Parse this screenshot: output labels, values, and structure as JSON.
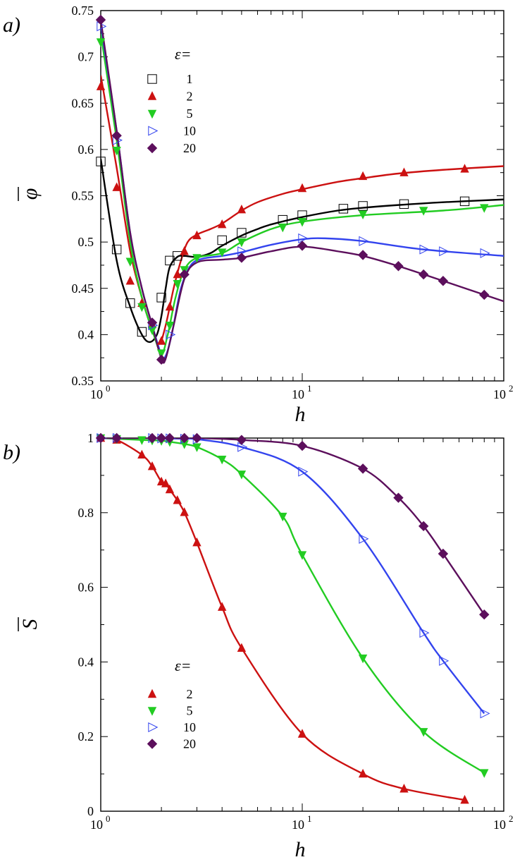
{
  "chart_data": [
    {
      "type": "line",
      "panel_label": "a)",
      "xlabel": "h",
      "ylabel": "φ",
      "x_scale": "log",
      "xlim": [
        1,
        100
      ],
      "ylim": [
        0.35,
        0.75
      ],
      "x_ticks": [
        {
          "value": 1,
          "base": "10",
          "exp": "0"
        },
        {
          "value": 10,
          "base": "10",
          "exp": "1"
        },
        {
          "value": 100,
          "base": "10",
          "exp": "2"
        }
      ],
      "y_ticks": [
        "0.35",
        "0.4",
        "0.45",
        "0.5",
        "0.55",
        "0.6",
        "0.65",
        "0.7",
        "0.75"
      ],
      "legend": {
        "title": "ε=",
        "position": "top-center"
      },
      "series": [
        {
          "name": "1",
          "color": "#000000",
          "marker": "square",
          "curve": [
            [
              1,
              0.59
            ],
            [
              1.2,
              0.48
            ],
            [
              1.4,
              0.43
            ],
            [
              1.6,
              0.4
            ],
            [
              1.75,
              0.392
            ],
            [
              1.9,
              0.4
            ],
            [
              2,
              0.42
            ],
            [
              2.1,
              0.45
            ],
            [
              2.2,
              0.473
            ],
            [
              2.4,
              0.484
            ],
            [
              2.6,
              0.485
            ],
            [
              3,
              0.484
            ],
            [
              3.5,
              0.488
            ],
            [
              4,
              0.496
            ],
            [
              5,
              0.507
            ],
            [
              6,
              0.514
            ],
            [
              7,
              0.519
            ],
            [
              10,
              0.527
            ],
            [
              15,
              0.534
            ],
            [
              20,
              0.537
            ],
            [
              30,
              0.54
            ],
            [
              50,
              0.543
            ],
            [
              100,
              0.546
            ]
          ],
          "points": [
            [
              1,
              0.587
            ],
            [
              1.2,
              0.492
            ],
            [
              1.4,
              0.434
            ],
            [
              1.6,
              0.403
            ],
            [
              2,
              0.44
            ],
            [
              2.2,
              0.48
            ],
            [
              2.4,
              0.485
            ],
            [
              4,
              0.502
            ],
            [
              5,
              0.51
            ],
            [
              8,
              0.524
            ],
            [
              10,
              0.529
            ],
            [
              16,
              0.536
            ],
            [
              20,
              0.539
            ],
            [
              32,
              0.541
            ],
            [
              64,
              0.544
            ]
          ]
        },
        {
          "name": "2",
          "color": "#cc1111",
          "marker": "triangle-up",
          "curve": [
            [
              1,
              0.68
            ],
            [
              1.2,
              0.58
            ],
            [
              1.4,
              0.49
            ],
            [
              1.6,
              0.44
            ],
            [
              1.8,
              0.405
            ],
            [
              1.95,
              0.39
            ],
            [
              2.1,
              0.41
            ],
            [
              2.3,
              0.45
            ],
            [
              2.5,
              0.48
            ],
            [
              2.7,
              0.5
            ],
            [
              3,
              0.508
            ],
            [
              3.5,
              0.514
            ],
            [
              4,
              0.52
            ],
            [
              5,
              0.534
            ],
            [
              6,
              0.543
            ],
            [
              8,
              0.552
            ],
            [
              10,
              0.557
            ],
            [
              15,
              0.565
            ],
            [
              20,
              0.569
            ],
            [
              30,
              0.574
            ],
            [
              50,
              0.578
            ],
            [
              100,
              0.582
            ]
          ],
          "points": [
            [
              1,
              0.668
            ],
            [
              1.2,
              0.559
            ],
            [
              1.4,
              0.458
            ],
            [
              1.6,
              0.434
            ],
            [
              1.8,
              0.411
            ],
            [
              2,
              0.393
            ],
            [
              2.2,
              0.43
            ],
            [
              2.4,
              0.465
            ],
            [
              2.6,
              0.49
            ],
            [
              3,
              0.507
            ],
            [
              4,
              0.519
            ],
            [
              5,
              0.535
            ],
            [
              10,
              0.558
            ],
            [
              20,
              0.571
            ],
            [
              32,
              0.575
            ],
            [
              64,
              0.579
            ]
          ]
        },
        {
          "name": "5",
          "color": "#22cc22",
          "marker": "triangle-down",
          "curve": [
            [
              1,
              0.725
            ],
            [
              1.2,
              0.61
            ],
            [
              1.4,
              0.5
            ],
            [
              1.6,
              0.44
            ],
            [
              1.8,
              0.405
            ],
            [
              2,
              0.38
            ],
            [
              2.15,
              0.4
            ],
            [
              2.35,
              0.44
            ],
            [
              2.6,
              0.47
            ],
            [
              3,
              0.483
            ],
            [
              4,
              0.488
            ],
            [
              5,
              0.5
            ],
            [
              7,
              0.514
            ],
            [
              10,
              0.522
            ],
            [
              20,
              0.529
            ],
            [
              50,
              0.534
            ],
            [
              100,
              0.54
            ]
          ],
          "points": [
            [
              1,
              0.716
            ],
            [
              1.2,
              0.599
            ],
            [
              1.4,
              0.479
            ],
            [
              1.6,
              0.43
            ],
            [
              1.8,
              0.405
            ],
            [
              2,
              0.38
            ],
            [
              2.2,
              0.41
            ],
            [
              2.4,
              0.455
            ],
            [
              2.6,
              0.47
            ],
            [
              3,
              0.483
            ],
            [
              4,
              0.489
            ],
            [
              5,
              0.5
            ],
            [
              8,
              0.516
            ],
            [
              10,
              0.522
            ],
            [
              20,
              0.53
            ],
            [
              40,
              0.534
            ],
            [
              80,
              0.537
            ]
          ]
        },
        {
          "name": "10",
          "color": "#3344ee",
          "marker": "triangle-right",
          "curve": [
            [
              1,
              0.735
            ],
            [
              1.2,
              0.62
            ],
            [
              1.4,
              0.51
            ],
            [
              1.6,
              0.45
            ],
            [
              1.8,
              0.41
            ],
            [
              2,
              0.378
            ],
            [
              2.1,
              0.377
            ],
            [
              2.25,
              0.4
            ],
            [
              2.5,
              0.45
            ],
            [
              2.8,
              0.475
            ],
            [
              3.2,
              0.482
            ],
            [
              4,
              0.485
            ],
            [
              5,
              0.489
            ],
            [
              7,
              0.497
            ],
            [
              10,
              0.503
            ],
            [
              13,
              0.504
            ],
            [
              20,
              0.501
            ],
            [
              40,
              0.492
            ],
            [
              100,
              0.485
            ]
          ],
          "points": [
            [
              1,
              0.733
            ],
            [
              1.2,
              0.61
            ],
            [
              1.8,
              0.41
            ],
            [
              2.2,
              0.4
            ],
            [
              5,
              0.49
            ],
            [
              10,
              0.504
            ],
            [
              20,
              0.501
            ],
            [
              40,
              0.492
            ],
            [
              50,
              0.49
            ],
            [
              80,
              0.488
            ]
          ]
        },
        {
          "name": "20",
          "color": "#5c0f5c",
          "marker": "diamond",
          "curve": [
            [
              1,
              0.74
            ],
            [
              1.2,
              0.62
            ],
            [
              1.4,
              0.51
            ],
            [
              1.6,
              0.45
            ],
            [
              1.8,
              0.41
            ],
            [
              2,
              0.374
            ],
            [
              2.1,
              0.374
            ],
            [
              2.3,
              0.41
            ],
            [
              2.6,
              0.46
            ],
            [
              3,
              0.478
            ],
            [
              4,
              0.481
            ],
            [
              5,
              0.483
            ],
            [
              7,
              0.49
            ],
            [
              10,
              0.495
            ],
            [
              15,
              0.49
            ],
            [
              20,
              0.485
            ],
            [
              30,
              0.474
            ],
            [
              50,
              0.458
            ],
            [
              100,
              0.436
            ]
          ],
          "points": [
            [
              1,
              0.74
            ],
            [
              1.2,
              0.615
            ],
            [
              1.8,
              0.413
            ],
            [
              2,
              0.373
            ],
            [
              2.6,
              0.465
            ],
            [
              5,
              0.483
            ],
            [
              10,
              0.496
            ],
            [
              20,
              0.486
            ],
            [
              30,
              0.474
            ],
            [
              40,
              0.465
            ],
            [
              50,
              0.458
            ],
            [
              80,
              0.443
            ]
          ]
        }
      ]
    },
    {
      "type": "line",
      "panel_label": "b)",
      "xlabel": "h",
      "ylabel": "S",
      "x_scale": "log",
      "xlim": [
        1,
        100
      ],
      "ylim": [
        0,
        1
      ],
      "x_ticks": [
        {
          "value": 1,
          "base": "10",
          "exp": "0"
        },
        {
          "value": 10,
          "base": "10",
          "exp": "1"
        },
        {
          "value": 100,
          "base": "10",
          "exp": "2"
        }
      ],
      "y_ticks": [
        "0",
        "0.2",
        "0.4",
        "0.6",
        "0.8",
        "1"
      ],
      "legend": {
        "title": "ε=",
        "position": "bottom-left"
      },
      "series": [
        {
          "name": "2",
          "color": "#cc1111",
          "marker": "triangle-up",
          "points": [
            [
              1,
              1.0
            ],
            [
              1.2,
              0.995
            ],
            [
              1.6,
              0.955
            ],
            [
              1.8,
              0.924
            ],
            [
              2,
              0.883
            ],
            [
              2.1,
              0.878
            ],
            [
              2.2,
              0.862
            ],
            [
              2.4,
              0.833
            ],
            [
              2.6,
              0.801
            ],
            [
              3,
              0.72
            ],
            [
              4,
              0.547
            ],
            [
              5,
              0.437
            ],
            [
              10,
              0.207
            ],
            [
              20,
              0.1
            ],
            [
              32,
              0.06
            ],
            [
              64,
              0.03
            ]
          ]
        },
        {
          "name": "5",
          "color": "#22cc22",
          "marker": "triangle-down",
          "points": [
            [
              1,
              1.0
            ],
            [
              1.2,
              0.998
            ],
            [
              1.6,
              0.995
            ],
            [
              1.8,
              0.994
            ],
            [
              2,
              0.993
            ],
            [
              2.2,
              0.99
            ],
            [
              2.6,
              0.984
            ],
            [
              3,
              0.976
            ],
            [
              4,
              0.943
            ],
            [
              5,
              0.903
            ],
            [
              8,
              0.79
            ],
            [
              10,
              0.687
            ],
            [
              20,
              0.41
            ],
            [
              40,
              0.213
            ],
            [
              80,
              0.103
            ]
          ]
        },
        {
          "name": "10",
          "color": "#3344ee",
          "marker": "triangle-right",
          "points": [
            [
              1,
              1.0
            ],
            [
              1.2,
              1.0
            ],
            [
              1.8,
              1.0
            ],
            [
              2,
              0.999
            ],
            [
              2.2,
              0.999
            ],
            [
              2.6,
              0.998
            ],
            [
              3,
              0.997
            ],
            [
              5,
              0.976
            ],
            [
              10,
              0.91
            ],
            [
              20,
              0.73
            ],
            [
              40,
              0.478
            ],
            [
              50,
              0.403
            ],
            [
              80,
              0.262
            ]
          ]
        },
        {
          "name": "20",
          "color": "#5c0f5c",
          "marker": "diamond",
          "points": [
            [
              1,
              1.0
            ],
            [
              1.2,
              1.0
            ],
            [
              1.8,
              1.0
            ],
            [
              2,
              1.0
            ],
            [
              2.2,
              1.0
            ],
            [
              2.6,
              1.0
            ],
            [
              3,
              1.0
            ],
            [
              5,
              0.995
            ],
            [
              10,
              0.979
            ],
            [
              20,
              0.918
            ],
            [
              30,
              0.84
            ],
            [
              40,
              0.764
            ],
            [
              50,
              0.69
            ],
            [
              80,
              0.527
            ]
          ]
        }
      ]
    }
  ]
}
